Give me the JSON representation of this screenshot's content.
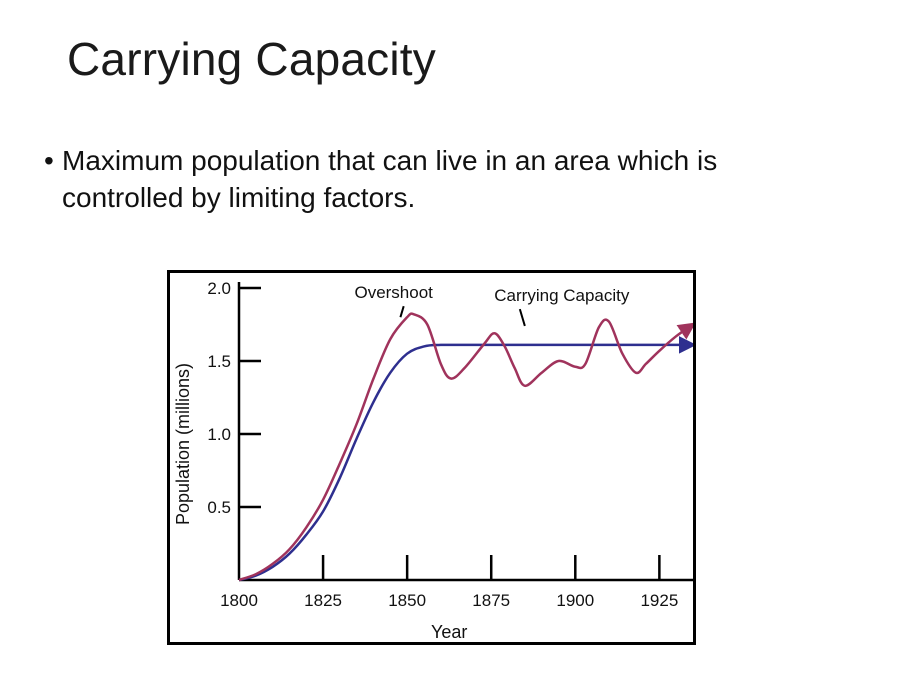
{
  "slide": {
    "title": "Carrying Capacity",
    "bullet": "Maximum population that can live in an area which is controlled by limiting factors."
  },
  "colors": {
    "carrying_capacity_line": "#2e2f8f",
    "population_line": "#a0335c",
    "axis": "#000000"
  },
  "chart_data": {
    "type": "line",
    "title": "",
    "xlabel": "Year",
    "ylabel": "Population (millions)",
    "xlim": [
      1800,
      1935
    ],
    "ylim": [
      0,
      2.0
    ],
    "xticks": [
      1800,
      1825,
      1850,
      1875,
      1900,
      1925
    ],
    "yticks": [
      0.5,
      1.0,
      1.5,
      2.0
    ],
    "ytick_labels": [
      "0.5",
      "1.0",
      "1.5",
      "2.0"
    ],
    "series": [
      {
        "name": "Carrying Capacity",
        "color": "#2e2f8f",
        "arrow": true,
        "x": [
          1800,
          1805,
          1810,
          1815,
          1820,
          1825,
          1830,
          1835,
          1840,
          1845,
          1850,
          1855,
          1860,
          1870,
          1880,
          1890,
          1900,
          1910,
          1920,
          1930,
          1935
        ],
        "y": [
          0.0,
          0.03,
          0.09,
          0.18,
          0.31,
          0.47,
          0.7,
          0.97,
          1.22,
          1.42,
          1.55,
          1.6,
          1.61,
          1.61,
          1.61,
          1.61,
          1.61,
          1.61,
          1.61,
          1.61,
          1.61
        ]
      },
      {
        "name": "Population",
        "color": "#a0335c",
        "arrow": true,
        "x": [
          1800,
          1805,
          1810,
          1815,
          1820,
          1825,
          1830,
          1835,
          1840,
          1845,
          1850,
          1852,
          1856,
          1860,
          1863,
          1867,
          1873,
          1876,
          1879,
          1882,
          1885,
          1890,
          1895,
          1900,
          1903,
          1907,
          1910,
          1914,
          1918,
          1921,
          1925,
          1930,
          1935
        ],
        "y": [
          0.0,
          0.04,
          0.11,
          0.21,
          0.36,
          0.55,
          0.8,
          1.07,
          1.38,
          1.65,
          1.8,
          1.82,
          1.75,
          1.48,
          1.38,
          1.45,
          1.62,
          1.69,
          1.6,
          1.45,
          1.33,
          1.42,
          1.5,
          1.46,
          1.48,
          1.73,
          1.77,
          1.55,
          1.42,
          1.48,
          1.57,
          1.67,
          1.75
        ]
      }
    ],
    "annotations": [
      {
        "text": "Overshoot",
        "x": 1846,
        "y": 1.93,
        "pointer_to": [
          1848,
          1.8
        ]
      },
      {
        "text": "Carrying Capacity",
        "x": 1896,
        "y": 1.91,
        "pointer_to": [
          1885,
          1.74
        ]
      }
    ]
  }
}
